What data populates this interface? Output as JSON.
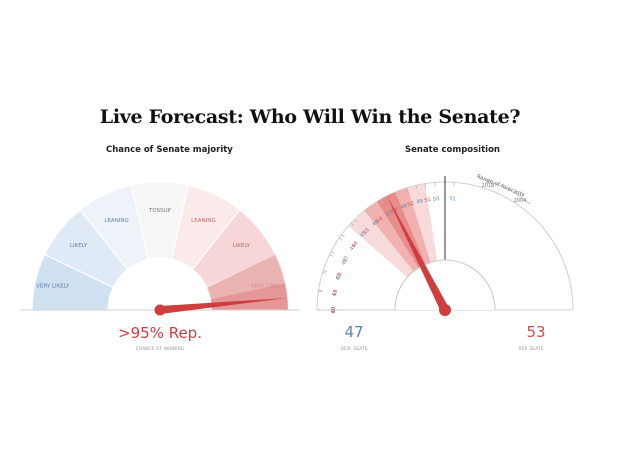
{
  "page": {
    "title": "Live Forecast: Who Will Win the Senate?"
  },
  "chart_data": [
    {
      "type": "gauge",
      "title": "Chance of Senate majority",
      "segments": [
        {
          "label": "VERY LIKELY",
          "party": "dem",
          "color": "#cfe0f1"
        },
        {
          "label": "LIKELY",
          "party": "dem",
          "color": "#e0eaf6"
        },
        {
          "label": "LEANING",
          "party": "dem",
          "color": "#eef3fa"
        },
        {
          "label": "TOSSUP",
          "party": "none",
          "color": "#f6f6f6"
        },
        {
          "label": "LEANING",
          "party": "rep",
          "color": "#fbeaea"
        },
        {
          "label": "LIKELY",
          "party": "rep",
          "color": "#f6d6d6"
        },
        {
          "label": "VERY LIKELY",
          "party": "rep",
          "color": "#f0c0c0"
        }
      ],
      "republican_chance_percent": 97,
      "value_label": ">95% Rep.",
      "value_caption": "CHANCE OF WINNING",
      "needle_color": "#cf3e3e"
    },
    {
      "type": "gauge",
      "title": "Senate composition",
      "dem_seat_labels": [
        "40",
        "41",
        "42",
        "43",
        "44",
        "45",
        "46",
        "47",
        "48",
        "49",
        "50",
        "51"
      ],
      "rep_seat_labels": [
        "51",
        "52",
        "53",
        "54",
        "55",
        "56",
        "57",
        "58",
        "59",
        "60"
      ],
      "seat_range": [
        40,
        60
      ],
      "range_label": "Range of forecasts",
      "range_years": [
        "2018",
        "2004"
      ],
      "forecast_seats_rep": 53,
      "dem_seats": "47",
      "dem_caption": "DEM. SEATS",
      "rep_seats": "53",
      "rep_caption": "REP. SEATS",
      "dem_color": "#5b86b5",
      "rep_color": "#cf4a4a",
      "needle_color": "#cf3e3e"
    }
  ]
}
